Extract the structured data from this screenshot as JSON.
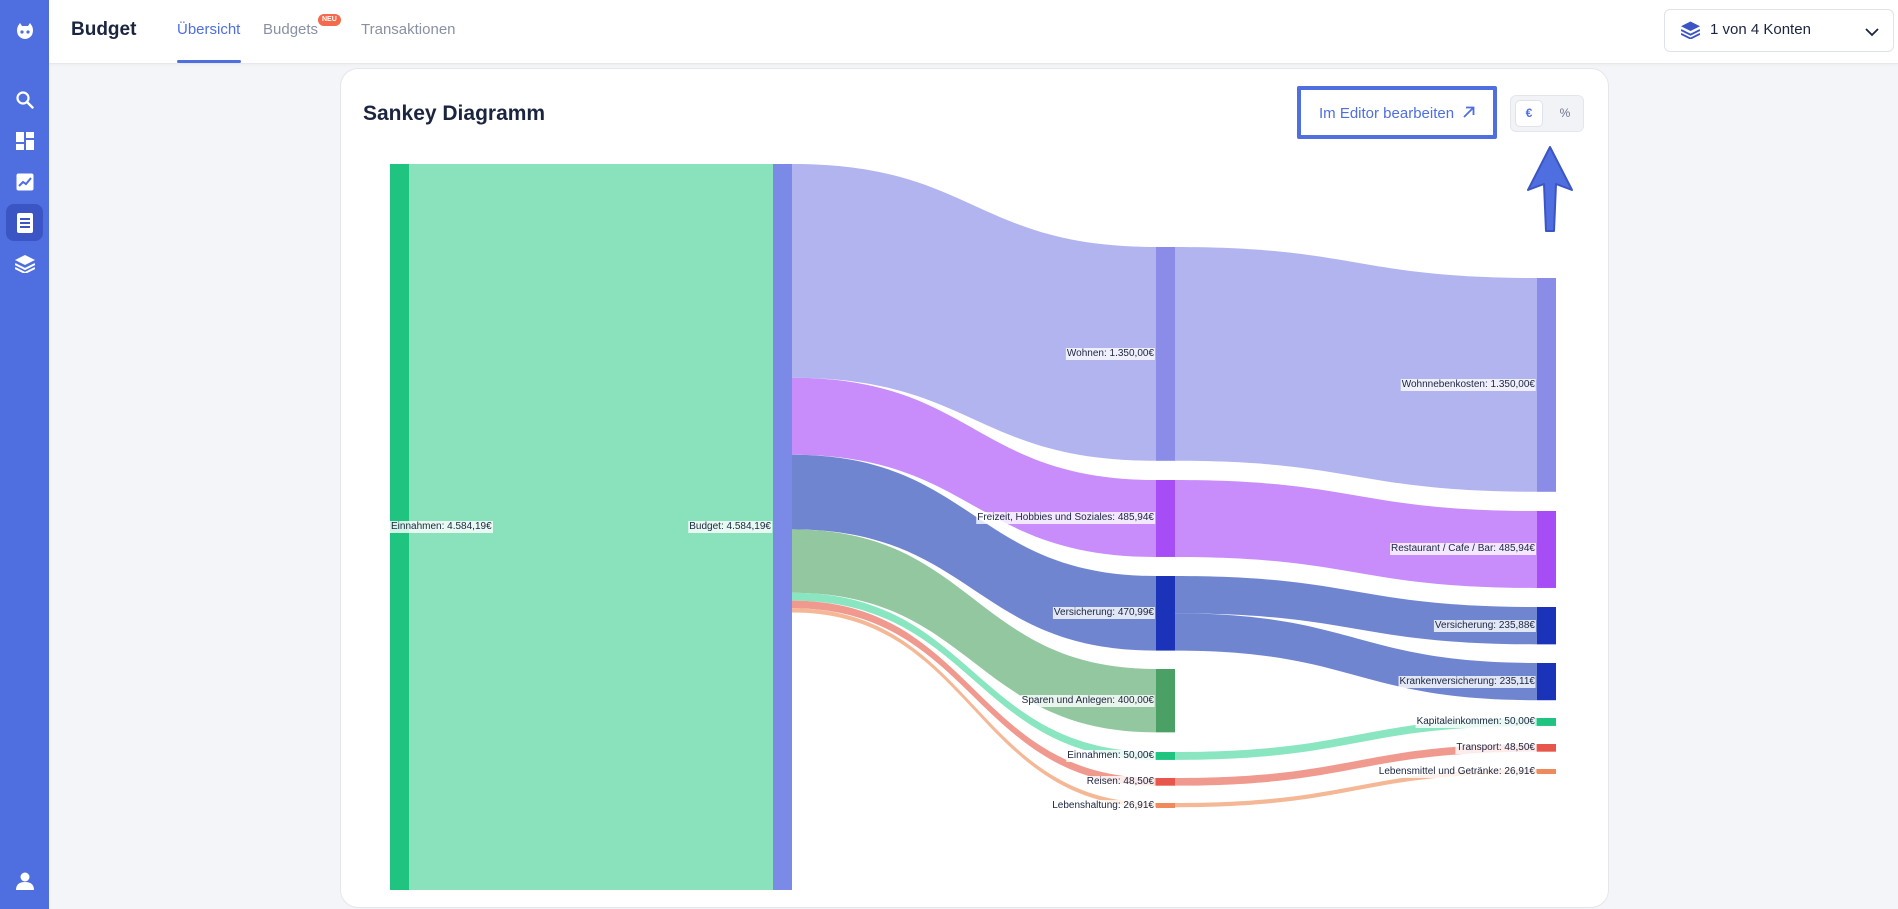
{
  "header": {
    "title": "Budget",
    "tabs": [
      {
        "label": "Übersicht",
        "active": true
      },
      {
        "label": "Budgets",
        "badge": "NEU"
      },
      {
        "label": "Transaktionen"
      }
    ],
    "account_selector": "1 von 4 Konten"
  },
  "sidebar": {
    "items": [
      {
        "icon": "search-icon"
      },
      {
        "icon": "dashboard-icon"
      },
      {
        "icon": "chart-icon"
      },
      {
        "icon": "document-icon",
        "active": true
      },
      {
        "icon": "layers-icon"
      }
    ],
    "bottom_icon": "user-icon"
  },
  "card": {
    "title": "Sankey Diagramm",
    "editor_button": "Im Editor bearbeiten",
    "unit_options": [
      "€",
      "%"
    ],
    "selected_unit": "€"
  },
  "colors": {
    "accent": "#4f6ee0",
    "income": "#1ec47f",
    "budget": "#7b8ae6",
    "wohnen": "#8a8ce8",
    "freizeit": "#a64df5",
    "versicherung": "#1b33b8",
    "sparen": "#4aa065",
    "einnahmen": "#1ec47f",
    "reisen": "#e8554a",
    "lebenshaltung": "#f08a5d"
  },
  "chart_data": {
    "type": "sankey",
    "nodes": [
      {
        "id": "einnahmen",
        "label": "Einnahmen: 4.584,19€",
        "value": 4584.19
      },
      {
        "id": "budget",
        "label": "Budget: 4.584,19€",
        "value": 4584.19
      },
      {
        "id": "wohnen",
        "label": "Wohnen: 1.350,00€",
        "value": 1350.0
      },
      {
        "id": "freizeit",
        "label": "Freizeit, Hobbies und Soziales: 485,94€",
        "value": 485.94
      },
      {
        "id": "versicherung",
        "label": "Versicherung: 470,99€",
        "value": 470.99
      },
      {
        "id": "sparen",
        "label": "Sparen und Anlegen: 400,00€",
        "value": 400.0
      },
      {
        "id": "einnahmen2",
        "label": "Einnahmen: 50,00€",
        "value": 50.0
      },
      {
        "id": "reisen",
        "label": "Reisen: 48,50€",
        "value": 48.5
      },
      {
        "id": "lebenshaltung",
        "label": "Lebenshaltung: 26,91€",
        "value": 26.91
      },
      {
        "id": "wohnnebenkosten",
        "label": "Wohnnebenkosten: 1.350,00€",
        "value": 1350.0
      },
      {
        "id": "restaurant",
        "label": "Restaurant / Cafe / Bar: 485,94€",
        "value": 485.94
      },
      {
        "id": "versicherung2",
        "label": "Versicherung: 235,88€",
        "value": 235.88
      },
      {
        "id": "krankenversicherung",
        "label": "Krankenversicherung: 235,11€",
        "value": 235.11
      },
      {
        "id": "kapitaleinkommen",
        "label": "Kapitaleinkommen: 50,00€",
        "value": 50.0
      },
      {
        "id": "transport",
        "label": "Transport: 48,50€",
        "value": 48.5
      },
      {
        "id": "lebensmittel",
        "label": "Lebensmittel und Getränke: 26,91€",
        "value": 26.91
      }
    ],
    "links": [
      {
        "source": "einnahmen",
        "target": "budget",
        "value": 4584.19
      },
      {
        "source": "budget",
        "target": "wohnen",
        "value": 1350.0
      },
      {
        "source": "budget",
        "target": "freizeit",
        "value": 485.94
      },
      {
        "source": "budget",
        "target": "versicherung",
        "value": 470.99
      },
      {
        "source": "budget",
        "target": "sparen",
        "value": 400.0
      },
      {
        "source": "budget",
        "target": "einnahmen2",
        "value": 50.0
      },
      {
        "source": "budget",
        "target": "reisen",
        "value": 48.5
      },
      {
        "source": "budget",
        "target": "lebenshaltung",
        "value": 26.91
      },
      {
        "source": "wohnen",
        "target": "wohnnebenkosten",
        "value": 1350.0
      },
      {
        "source": "freizeit",
        "target": "restaurant",
        "value": 485.94
      },
      {
        "source": "versicherung",
        "target": "versicherung2",
        "value": 235.88
      },
      {
        "source": "versicherung",
        "target": "krankenversicherung",
        "value": 235.11
      },
      {
        "source": "einnahmen2",
        "target": "kapitaleinkommen",
        "value": 50.0
      },
      {
        "source": "reisen",
        "target": "transport",
        "value": 48.5
      },
      {
        "source": "lebenshaltung",
        "target": "lebensmittel",
        "value": 26.91
      }
    ]
  }
}
